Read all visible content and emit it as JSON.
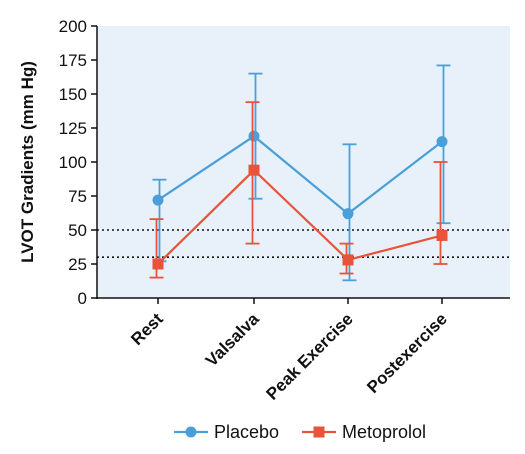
{
  "chart_data": {
    "type": "line",
    "title": "",
    "xlabel": "",
    "ylabel": "LVOT Gradients (mm Hg)",
    "categories": [
      "Rest",
      "Valsalva",
      "Peak Exercise",
      "Postexercise"
    ],
    "ylim": [
      0,
      200
    ],
    "yticks": [
      0,
      25,
      50,
      75,
      100,
      125,
      150,
      175,
      200
    ],
    "reference_lines": [
      30,
      50
    ],
    "legend_position": "bottom",
    "grid": false,
    "background_color": "#e8f1fa",
    "series": [
      {
        "name": "Placebo",
        "color": "#4a9fd8",
        "marker": "circle",
        "values": [
          72,
          119,
          62,
          115
        ],
        "error_low": [
          27,
          73,
          13,
          55
        ],
        "error_high": [
          87,
          165,
          113,
          171
        ]
      },
      {
        "name": "Metoprolol",
        "color": "#e8533a",
        "marker": "square",
        "values": [
          25,
          94,
          28,
          46
        ],
        "error_low": [
          15,
          40,
          18,
          25
        ],
        "error_high": [
          58,
          144,
          40,
          100
        ]
      }
    ]
  }
}
